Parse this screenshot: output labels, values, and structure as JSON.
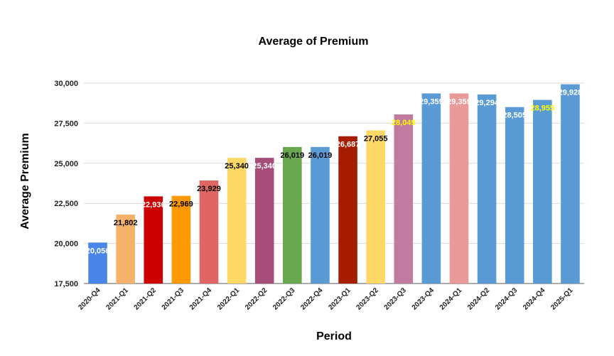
{
  "chart_data": {
    "type": "bar",
    "title": "Average of Premium",
    "xlabel": "Period",
    "ylabel": "Average Premium",
    "ylim": [
      17500,
      30000
    ],
    "yticks": [
      "17,500",
      "20,000",
      "22,500",
      "25,000",
      "27,500",
      "30,000"
    ],
    "ytick_values": [
      17500,
      20000,
      22500,
      25000,
      27500,
      30000
    ],
    "grid": true,
    "categories": [
      "2020-Q4",
      "2021-Q1",
      "2021-Q2",
      "2021-Q3",
      "2021-Q4",
      "2022-Q1",
      "2022-Q2",
      "2022-Q3",
      "2022-Q4",
      "2023-Q1",
      "2023-Q2",
      "2023-Q3",
      "2023-Q4",
      "2024-Q1",
      "2024-Q2",
      "2024-Q3",
      "2024-Q4",
      "2025-Q1"
    ],
    "values": [
      20056,
      21802,
      22936,
      22969,
      23929,
      25340,
      25340,
      26019,
      26019,
      26687,
      27055,
      28049,
      29359,
      29359,
      29294,
      28505,
      28955,
      29928
    ],
    "value_labels": [
      "20,056",
      "21,802",
      "22,936",
      "22,969",
      "23,929",
      "25,340",
      "25,340",
      "26,019",
      "26,019",
      "26,687",
      "27,055",
      "28,049",
      "29,359",
      "29,359",
      "29,294",
      "28,505",
      "28,955",
      "29,928"
    ],
    "bar_colors": [
      "#4a86e8",
      "#f6b26b",
      "#cc0000",
      "#ff9900",
      "#e06666",
      "#ffd966",
      "#a64d79",
      "#6aa84f",
      "#5b9bd5",
      "#a61c00",
      "#ffd966",
      "#c27ba0",
      "#5b9bd5",
      "#ea9999",
      "#5b9bd5",
      "#5b9bd5",
      "#5b9bd5",
      "#5b9bd5"
    ],
    "label_colors": [
      "#ffffff",
      "#000000",
      "#ffffff",
      "#000000",
      "#000000",
      "#000000",
      "#ffffff",
      "#000000",
      "#000000",
      "#ffffff",
      "#000000",
      "#ffff00",
      "#ffffff",
      "#ffffff",
      "#ffffff",
      "#ffffff",
      "#ffff00",
      "#ffffff"
    ]
  }
}
